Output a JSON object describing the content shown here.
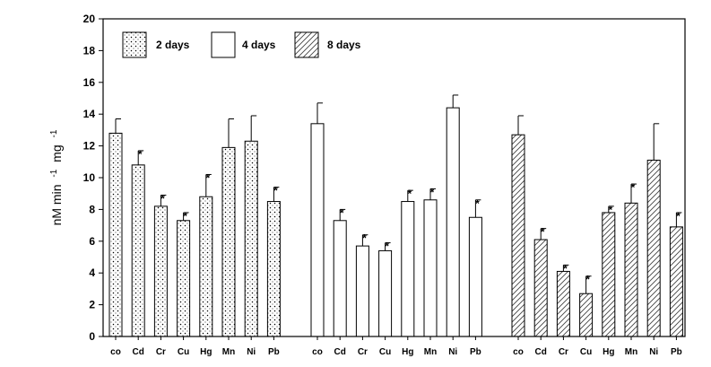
{
  "chart_data": {
    "type": "bar",
    "ylabel_parts": [
      "nM min",
      "-1",
      "mg",
      "-1"
    ],
    "ylim": [
      0,
      20
    ],
    "yticks": [
      "0",
      "2",
      "4",
      "6",
      "8",
      "10",
      "12",
      "14",
      "16",
      "18",
      "20"
    ],
    "legend_position": "top-left",
    "colors": {
      "bar_fill": "#ffffff",
      "stroke": "#000000"
    },
    "groups": [
      {
        "name": "2 days",
        "pattern": "dots",
        "categories": [
          "co",
          "Cd",
          "Cr",
          "Cu",
          "Hg",
          "Mn",
          "Ni",
          "Pb"
        ],
        "values": [
          12.8,
          10.8,
          8.2,
          7.3,
          8.8,
          11.9,
          12.3,
          8.5
        ],
        "errors": [
          0.9,
          0.9,
          0.7,
          0.5,
          1.4,
          1.8,
          1.6,
          0.9
        ],
        "significant": [
          false,
          true,
          true,
          true,
          true,
          false,
          false,
          true
        ],
        "star": [
          "",
          "*",
          "*",
          "*",
          "*",
          "",
          "",
          "*"
        ]
      },
      {
        "name": "4 days",
        "pattern": "none",
        "categories": [
          "co",
          "Cd",
          "Cr",
          "Cu",
          "Hg",
          "Mn",
          "Ni",
          "Pb"
        ],
        "values": [
          13.4,
          7.3,
          5.7,
          5.4,
          8.5,
          8.6,
          14.4,
          7.5
        ],
        "errors": [
          1.3,
          0.7,
          0.7,
          0.5,
          0.7,
          0.7,
          0.8,
          1.1
        ],
        "significant": [
          false,
          true,
          true,
          true,
          true,
          true,
          false,
          true
        ],
        "star": [
          "",
          "*",
          "*",
          "*",
          "*",
          "*",
          "",
          "*"
        ]
      },
      {
        "name": "8 days",
        "pattern": "hatch",
        "categories": [
          "co",
          "Cd",
          "Cr",
          "Cu",
          "Hg",
          "Mn",
          "Ni",
          "Pb"
        ],
        "values": [
          12.7,
          6.1,
          4.1,
          2.7,
          7.8,
          8.4,
          11.1,
          6.9
        ],
        "errors": [
          1.2,
          0.7,
          0.4,
          1.1,
          0.4,
          1.2,
          2.3,
          0.9
        ],
        "significant": [
          false,
          true,
          true,
          true,
          true,
          true,
          false,
          true
        ],
        "star": [
          "",
          "*",
          "*",
          "*",
          "*",
          "*",
          "",
          "*"
        ]
      }
    ]
  }
}
